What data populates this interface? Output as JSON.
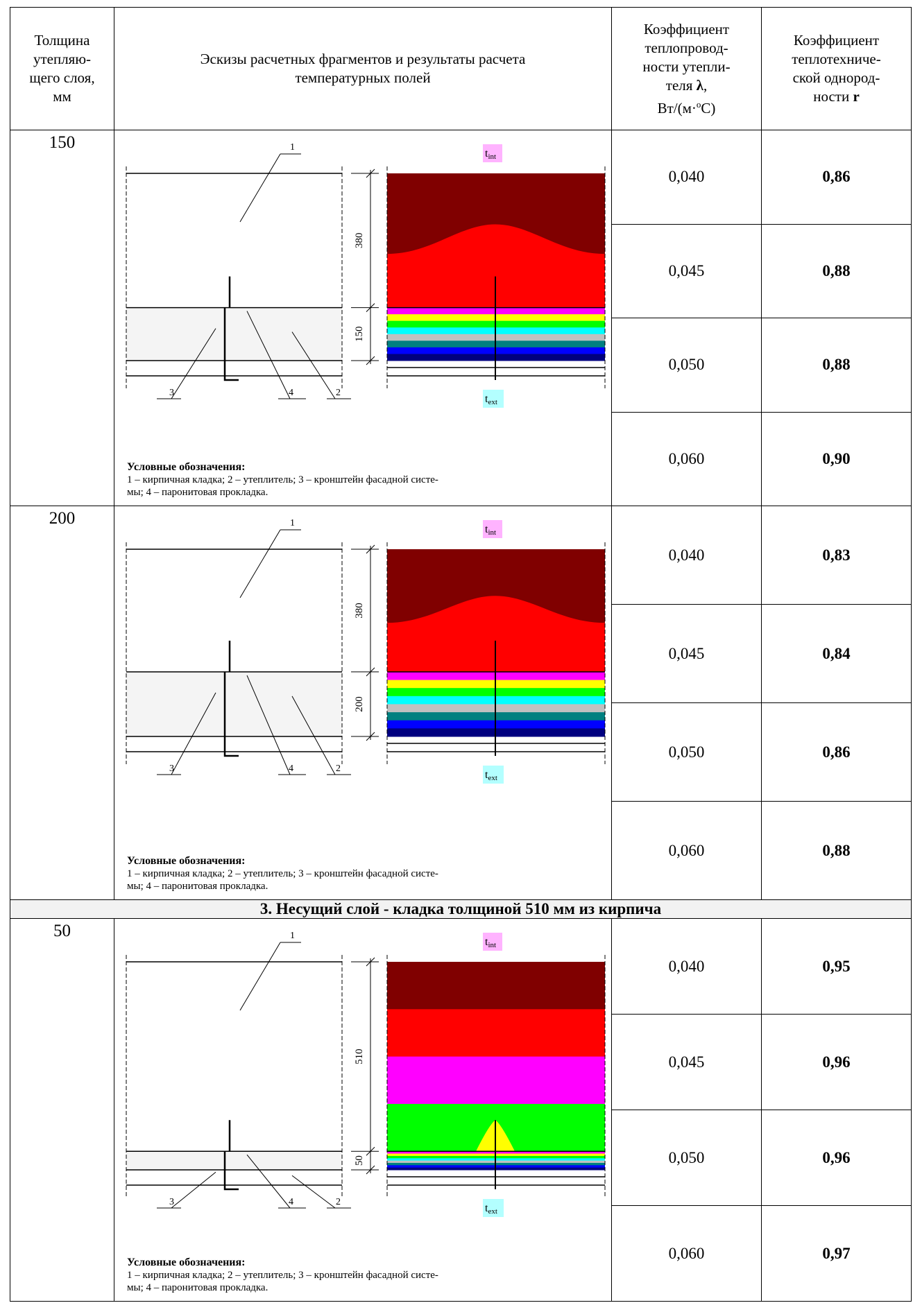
{
  "table": {
    "header": {
      "col1": [
        "Толщина",
        "утепляю-",
        "щего слоя,",
        "мм"
      ],
      "col2": [
        "Эскизы расчетных фрагментов и результаты расчета",
        "температурных полей"
      ],
      "col3": [
        "Коэффициент",
        "теплопровод-",
        "ности утепли-",
        [
          "теля ",
          "λ",
          ","
        ],
        [
          "Вт/(м·",
          "о",
          "С)"
        ]
      ],
      "col4": [
        "Коэффициент",
        "теплотехниче-",
        "ской однород-",
        [
          "ности ",
          "r"
        ]
      ]
    },
    "section_title": "3. Несущий слой - кладка толщиной 510 мм из кирпича",
    "groups": [
      {
        "thickness": "150",
        "sketch": {
          "callouts": [
            "1",
            "3",
            "4",
            "2"
          ],
          "dims": [
            "380",
            "150"
          ],
          "t_int": [
            "t",
            "int"
          ],
          "t_ext": [
            "t",
            "ext"
          ],
          "legend_title": "Условные обозначения:",
          "legend_lines": [
            "1 – кирпичная кладка; 2 – утеплитель; 3 – кронштейн фасадной систе-",
            "мы; 4 – паронитовая прокладка."
          ]
        },
        "rows": [
          {
            "lambda": "0,040",
            "r": "0,86"
          },
          {
            "lambda": "0,045",
            "r": "0,88"
          },
          {
            "lambda": "0,050",
            "r": "0,88"
          },
          {
            "lambda": "0,060",
            "r": "0,90"
          }
        ]
      },
      {
        "thickness": "200",
        "sketch": {
          "callouts": [
            "1",
            "3",
            "4",
            "2"
          ],
          "dims": [
            "380",
            "200"
          ],
          "t_int": [
            "t",
            "int"
          ],
          "t_ext": [
            "t",
            "ext"
          ],
          "legend_title": "Условные обозначения:",
          "legend_lines": [
            "1 – кирпичная кладка; 2 – утеплитель; 3 – кронштейн фасадной систе-",
            "мы; 4 – паронитовая прокладка."
          ]
        },
        "rows": [
          {
            "lambda": "0,040",
            "r": "0,83"
          },
          {
            "lambda": "0,045",
            "r": "0,84"
          },
          {
            "lambda": "0,050",
            "r": "0,86"
          },
          {
            "lambda": "0,060",
            "r": "0,88"
          }
        ]
      },
      {
        "thickness": "50",
        "sketch": {
          "callouts": [
            "1",
            "3",
            "4",
            "2"
          ],
          "dims": [
            "510",
            "50"
          ],
          "t_int": [
            "t",
            "int"
          ],
          "t_ext": [
            "t",
            "ext"
          ],
          "legend_title": "Условные обозначения:",
          "legend_lines": [
            "1 – кирпичная кладка; 2 – утеплитель; 3 – кронштейн фасадной систе-",
            "мы; 4 – паронитовая прокладка."
          ]
        },
        "rows": [
          {
            "lambda": "0,040",
            "r": "0,95"
          },
          {
            "lambda": "0,045",
            "r": "0,96"
          },
          {
            "lambda": "0,050",
            "r": "0,96"
          },
          {
            "lambda": "0,060",
            "r": "0,97"
          }
        ]
      }
    ]
  }
}
